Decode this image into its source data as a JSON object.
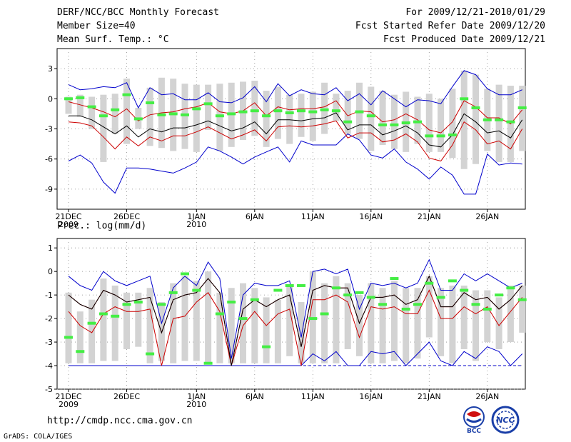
{
  "header": {
    "title": "DERF/NCC/BCC Monthly Forecast",
    "member_size": "Member Size=40",
    "period": "For 2009/12/21-2010/01/29",
    "start_date": "Fcst Started Refer Date 2009/12/20",
    "produced_date": "Fcst Produced Date 2009/12/21"
  },
  "footer": {
    "url": "http://cmdp.ncc.cma.gov.cn",
    "credit": "GrADS: COLA/IGES",
    "logo_bcc": "BCC",
    "logo_ncc": "NCC"
  },
  "colors": {
    "box": "#d3d3d3",
    "mean": "#000000",
    "quartile": "#cc0000",
    "extreme": "#0000cc",
    "marker": "#44ee44",
    "dashed": "#0000cc"
  },
  "chart_data": [
    {
      "type": "line",
      "title": "Mean Surf. Temp.: °C",
      "ylabel": "Mean Surf. Temp.: °C",
      "ylim": [
        -11,
        5
      ],
      "yticks": [
        3,
        0,
        -3,
        -6,
        -9
      ],
      "ytick_labels": [
        "3",
        "0",
        "-3",
        "-6",
        "-9"
      ],
      "days": 40,
      "xtick_days": [
        1,
        6,
        12,
        17,
        22,
        27,
        32,
        37
      ],
      "xtick_labels": [
        "21DEC",
        "26DEC",
        "1JAN",
        "6JAN",
        "11JAN",
        "16JAN",
        "21JAN",
        "26JAN"
      ],
      "xtick_sublabels": [
        "2009",
        "",
        "2010",
        "",
        "",
        "",
        "",
        ""
      ],
      "series": [
        {
          "name": "maximum",
          "values": [
            1.4,
            0.9,
            1.0,
            1.2,
            1.1,
            1.6,
            -0.9,
            1.1,
            0.4,
            0.5,
            -0.1,
            -0.1,
            0.6,
            -0.3,
            -0.4,
            0.1,
            1.2,
            -0.3,
            1.5,
            0.3,
            0.9,
            0.5,
            0.4,
            1.1,
            -0.2,
            0.5,
            -0.6,
            0.8,
            0.0,
            -0.8,
            -0.1,
            -0.2,
            -0.5,
            1.2,
            2.8,
            2.4,
            1.0,
            0.4,
            0.4,
            0.9
          ]
        },
        {
          "name": "upper quartile",
          "values": [
            -0.3,
            -0.6,
            -0.9,
            -1.3,
            -1.8,
            -1.0,
            -2.2,
            -1.6,
            -1.4,
            -1.3,
            -1.0,
            -0.8,
            -0.4,
            -1.3,
            -1.5,
            -1.2,
            -0.4,
            -1.7,
            -0.8,
            -1.1,
            -1.0,
            -1.0,
            -0.8,
            -0.2,
            -1.7,
            -1.2,
            -1.3,
            -2.3,
            -2.1,
            -1.5,
            -2.1,
            -3.1,
            -3.4,
            -2.3,
            -0.2,
            -0.8,
            -1.9,
            -1.9,
            -2.5,
            -1.1
          ]
        },
        {
          "name": "ensemble mean",
          "values": [
            -1.7,
            -1.7,
            -2.1,
            -2.8,
            -3.5,
            -2.7,
            -3.8,
            -3.0,
            -3.3,
            -2.9,
            -2.9,
            -2.6,
            -2.2,
            -2.7,
            -3.2,
            -2.9,
            -2.3,
            -3.5,
            -2.1,
            -2.1,
            -2.2,
            -2.0,
            -1.9,
            -1.4,
            -3.1,
            -2.6,
            -2.6,
            -3.6,
            -3.2,
            -2.7,
            -3.4,
            -4.6,
            -4.8,
            -3.6,
            -1.5,
            -2.3,
            -3.4,
            -3.2,
            -3.9,
            -2.1
          ]
        },
        {
          "name": "lower quartile",
          "values": [
            -2.3,
            -2.4,
            -2.7,
            -3.8,
            -5.0,
            -3.8,
            -4.7,
            -3.8,
            -4.2,
            -3.7,
            -3.7,
            -3.3,
            -2.8,
            -3.4,
            -4.0,
            -3.6,
            -3.1,
            -4.2,
            -2.8,
            -2.7,
            -2.8,
            -2.7,
            -2.5,
            -2.2,
            -3.9,
            -3.4,
            -3.4,
            -4.3,
            -4.1,
            -3.5,
            -4.3,
            -5.9,
            -6.2,
            -4.6,
            -2.3,
            -3.1,
            -4.5,
            -4.2,
            -5.0,
            -3.0
          ]
        },
        {
          "name": "minimum",
          "values": [
            -6.2,
            -5.6,
            -6.4,
            -8.3,
            -9.4,
            -6.9,
            -6.9,
            -7.0,
            -7.2,
            -7.4,
            -6.9,
            -6.3,
            -4.8,
            -5.2,
            -5.8,
            -6.5,
            -5.8,
            -5.3,
            -4.8,
            -6.3,
            -4.2,
            -4.6,
            -4.6,
            -4.6,
            -3.5,
            -4.1,
            -5.6,
            -5.9,
            -5.0,
            -6.3,
            -7.0,
            -8.0,
            -6.8,
            -7.6,
            -9.5,
            -9.5,
            -5.5,
            -6.6,
            -6.4,
            -6.5
          ]
        },
        {
          "name": "climatology",
          "values": [
            0.0,
            0.1,
            -0.8,
            -1.7,
            -1.1,
            0.4,
            -2.0,
            -0.4,
            -1.6,
            -1.5,
            -1.6,
            -1.0,
            -0.5,
            -1.7,
            -1.5,
            -1.3,
            -1.2,
            -1.7,
            -1.2,
            -1.4,
            -1.2,
            -1.3,
            -1.1,
            -1.2,
            -2.3,
            -1.3,
            -1.7,
            -2.6,
            -2.6,
            -2.4,
            -2.3,
            -3.7,
            -3.7,
            -3.6,
            0.0,
            -0.9,
            -2.1,
            -2.1,
            -2.3,
            -0.9
          ]
        },
        {
          "name": "box top",
          "values": [
            0.2,
            0.4,
            0.2,
            0.4,
            0.5,
            2.0,
            -0.9,
            1.1,
            2.1,
            2.0,
            1.5,
            1.4,
            1.4,
            1.5,
            1.6,
            1.7,
            1.8,
            0.8,
            1.2,
            0.4,
            0.5,
            0.7,
            1.6,
            0.5,
            0.8,
            1.6,
            1.2,
            0.8,
            0.4,
            0.7,
            0.2,
            0.5,
            0.0,
            1.0,
            2.8,
            2.4,
            1.0,
            1.4,
            1.3,
            1.3
          ]
        },
        {
          "name": "box bottom",
          "values": [
            -1.5,
            -1.8,
            -3.0,
            -6.3,
            -3.5,
            -4.5,
            -3.0,
            -4.7,
            -4.9,
            -5.2,
            -5.0,
            -5.3,
            -3.1,
            -5.2,
            -4.8,
            -4.1,
            -3.7,
            -4.8,
            -4.0,
            -4.5,
            -3.8,
            -4.2,
            -3.5,
            -2.2,
            -3.5,
            -4.0,
            -5.2,
            -4.6,
            -5.0,
            -5.3,
            -4.5,
            -5.3,
            -5.3,
            -5.9,
            -7.0,
            -6.5,
            -5.2,
            -6.3,
            -6.3,
            -5.2
          ]
        }
      ]
    },
    {
      "type": "line",
      "title": "Prec.: log(mm/d)",
      "ylabel": "Prec.: log(mm/d)",
      "ylim": [
        -5,
        1.4
      ],
      "yticks": [
        1,
        0,
        -1,
        -2,
        -3,
        -4,
        -5
      ],
      "ytick_labels": [
        "1",
        "0",
        "-1",
        "-2",
        "-3",
        "-4",
        "-5"
      ],
      "days": 40,
      "xtick_days": [
        1,
        6,
        12,
        17,
        22,
        27,
        32,
        37
      ],
      "xtick_labels": [
        "21DEC",
        "26DEC",
        "1JAN",
        "6JAN",
        "11JAN",
        "16JAN",
        "21JAN",
        "26JAN"
      ],
      "xtick_sublabels": [
        "2009",
        "",
        "2010",
        "",
        "",
        "",
        "",
        ""
      ],
      "series": [
        {
          "name": "maximum",
          "values": [
            -0.2,
            -0.6,
            -0.8,
            0.0,
            -0.4,
            -0.6,
            -0.4,
            -0.2,
            -2.2,
            -0.7,
            -0.2,
            -0.6,
            0.4,
            -0.3,
            -3.7,
            -1.0,
            -0.5,
            -0.6,
            -0.6,
            -0.4,
            -2.8,
            0.0,
            0.1,
            -0.1,
            0.1,
            -1.6,
            -0.5,
            -0.6,
            -0.5,
            -0.7,
            -0.5,
            0.5,
            -0.8,
            -0.8,
            -0.1,
            -0.4,
            -0.1,
            -0.4,
            -0.7,
            -0.5
          ]
        },
        {
          "name": "upper quartile",
          "values": [
            -1.0,
            -1.4,
            -1.6,
            -0.8,
            -1.0,
            -1.3,
            -1.2,
            -1.1,
            -2.6,
            -1.2,
            -1.0,
            -0.9,
            -0.3,
            -0.9,
            -4.0,
            -1.6,
            -1.2,
            -1.5,
            -1.2,
            -1.0,
            -3.2,
            -0.8,
            -0.6,
            -0.7,
            -0.7,
            -2.2,
            -1.1,
            -1.1,
            -1.0,
            -1.4,
            -1.2,
            -0.2,
            -1.5,
            -1.5,
            -0.9,
            -1.2,
            -1.1,
            -1.6,
            -1.2,
            -0.6
          ]
        },
        {
          "name": "ensemble mean",
          "values": [
            -1.0,
            -1.4,
            -1.6,
            -0.8,
            -1.0,
            -1.3,
            -1.2,
            -1.1,
            -2.6,
            -1.2,
            -1.0,
            -0.9,
            -0.3,
            -0.9,
            -4.0,
            -1.6,
            -1.2,
            -1.5,
            -1.2,
            -1.0,
            -3.2,
            -0.8,
            -0.6,
            -0.7,
            -0.7,
            -2.2,
            -1.1,
            -1.1,
            -1.0,
            -1.4,
            -1.2,
            -0.2,
            -1.5,
            -1.5,
            -0.9,
            -1.2,
            -1.1,
            -1.6,
            -1.2,
            -0.6
          ]
        },
        {
          "name": "lower quartile",
          "values": [
            -1.7,
            -2.3,
            -2.6,
            -1.8,
            -1.5,
            -1.7,
            -1.7,
            -1.6,
            -4.0,
            -2.0,
            -1.9,
            -1.3,
            -0.9,
            -1.7,
            -4.0,
            -2.3,
            -1.7,
            -2.3,
            -1.8,
            -1.6,
            -4.0,
            -1.2,
            -1.2,
            -1.0,
            -1.3,
            -2.8,
            -1.5,
            -1.6,
            -1.5,
            -1.8,
            -1.8,
            -0.8,
            -2.0,
            -2.0,
            -1.5,
            -1.8,
            -1.5,
            -2.3,
            -1.7,
            -1.1
          ]
        },
        {
          "name": "minimum",
          "values": [
            -4.0,
            -4.0,
            -4.0,
            -4.0,
            -4.0,
            -4.0,
            -4.0,
            -4.0,
            -4.0,
            -4.0,
            -4.0,
            -4.0,
            -4.0,
            -4.0,
            -4.0,
            -4.0,
            -4.0,
            -4.0,
            -4.0,
            -4.0,
            -4.0,
            -3.5,
            -3.8,
            -3.4,
            -4.0,
            -4.0,
            -3.4,
            -3.5,
            -3.4,
            -4.0,
            -3.5,
            -3.0,
            -3.8,
            -4.0,
            -3.4,
            -3.7,
            -3.2,
            -3.4,
            -4.0,
            -3.5
          ]
        },
        {
          "name": "climatology",
          "values": [
            -2.8,
            -3.4,
            -2.2,
            -1.8,
            -1.9,
            -1.4,
            -1.3,
            -3.5,
            -1.4,
            -0.9,
            -0.1,
            -0.8,
            -3.9,
            -1.8,
            -1.3,
            -2.0,
            -1.2,
            -3.2,
            -0.8,
            -0.6,
            -0.6,
            -2.0,
            -1.8,
            -0.7,
            -1.0,
            -0.9,
            -1.1,
            -1.4,
            -0.3,
            -1.6,
            -1.4,
            -0.5,
            -1.1,
            -0.4,
            -0.8,
            -1.4,
            -1.6,
            -1.0,
            -0.7,
            -1.2
          ]
        },
        {
          "name": "box top",
          "values": [
            -0.9,
            -1.7,
            -1.2,
            -0.3,
            -0.6,
            -0.9,
            -0.9,
            -0.7,
            -1.3,
            -0.5,
            -0.2,
            -0.4,
            0.0,
            -0.9,
            -0.7,
            -0.5,
            -0.7,
            -1.1,
            -1.2,
            -0.6,
            -1.3,
            0.0,
            -0.5,
            -0.2,
            -0.5,
            -1.0,
            -0.5,
            -0.7,
            -0.4,
            -0.7,
            -0.7,
            -0.2,
            -0.7,
            -0.6,
            -0.6,
            -0.8,
            -0.8,
            -1.1,
            -0.6,
            -0.6
          ]
        },
        {
          "name": "box bottom",
          "values": [
            -3.9,
            -3.9,
            -3.9,
            -3.8,
            -3.8,
            -3.3,
            -3.2,
            -3.9,
            -3.8,
            -3.9,
            -3.8,
            -3.8,
            -3.9,
            -3.9,
            -3.9,
            -3.9,
            -3.9,
            -3.9,
            -3.9,
            -3.6,
            -3.9,
            -3.9,
            -3.9,
            -3.9,
            -3.3,
            -3.6,
            -3.9,
            -3.9,
            -3.8,
            -3.9,
            -3.7,
            -2.8,
            -3.6,
            -3.9,
            -3.3,
            -3.8,
            -3.0,
            -3.3,
            -3.0,
            -2.6
          ]
        }
      ]
    }
  ]
}
